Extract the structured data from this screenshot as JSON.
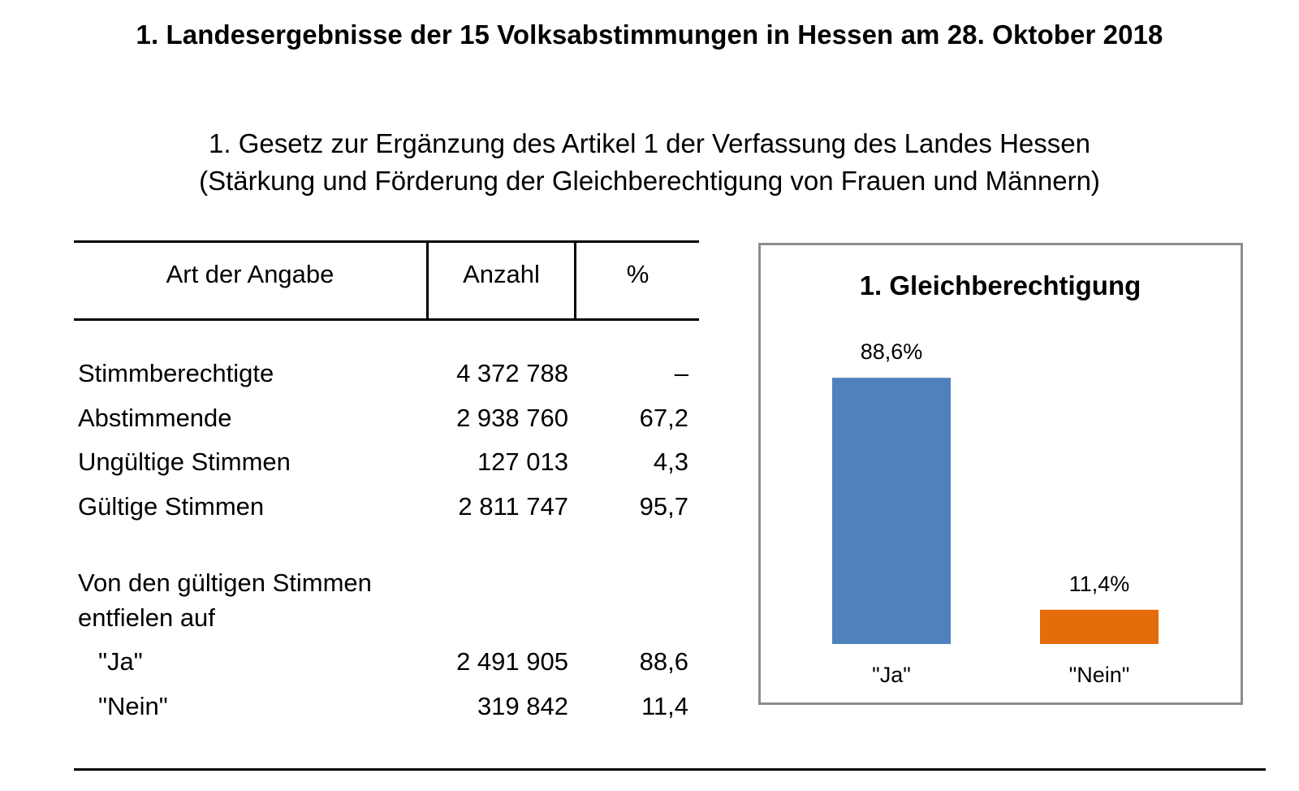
{
  "document": {
    "main_title": "1. Landesergebnisse der 15 Volksabstimmungen in Hessen am 28. Oktober 2018",
    "subtitle_line1": "1. Gesetz zur Ergänzung des Artikel 1 der Verfassung des Landes Hessen",
    "subtitle_line2": "(Stärkung und Förderung der Gleichberechtigung von Frauen und Männern)"
  },
  "table": {
    "headers": {
      "label": "Art der Angabe",
      "count": "Anzahl",
      "percent": "%"
    },
    "rows": [
      {
        "label": "Stimmberechtigte",
        "count": "4 372 788",
        "percent": "–"
      },
      {
        "label": "Abstimmende",
        "count": "2 938 760",
        "percent": "67,2"
      },
      {
        "label": "Ungültige Stimmen",
        "count": "127 013",
        "percent": "4,3"
      },
      {
        "label": "Gültige Stimmen",
        "count": "2 811 747",
        "percent": "95,7"
      }
    ],
    "section_label_line1": "Von den gültigen Stimmen",
    "section_label_line2": "entfielen auf",
    "sub_rows": [
      {
        "label": "\"Ja\"",
        "count": "2 491 905",
        "percent": "88,6"
      },
      {
        "label": "\"Nein\"",
        "count": "319 842",
        "percent": "11,4"
      }
    ]
  },
  "chart_data": {
    "type": "bar",
    "title": "1. Gleichberechtigung",
    "categories": [
      "\"Ja\"",
      "\"Nein\""
    ],
    "values": [
      88.6,
      11.4
    ],
    "data_labels": [
      "88,6%",
      "11,4%"
    ],
    "colors": [
      "#4f81bd",
      "#e46c0a"
    ],
    "ylim": [
      0,
      100
    ],
    "grid": false,
    "legend": "none"
  }
}
